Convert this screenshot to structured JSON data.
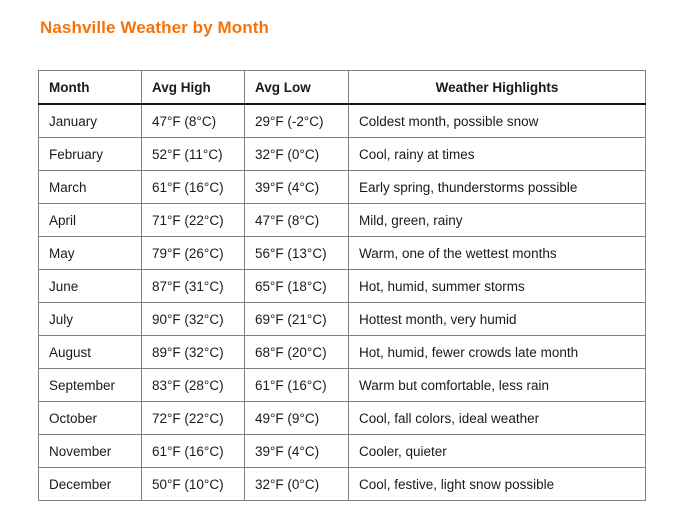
{
  "page": {
    "title": "Nashville Weather by Month"
  },
  "colors": {
    "title_accent": "#f4730b",
    "grid_line": "#808080",
    "outer_border": "#4d4d4d",
    "header_rule": "#141414",
    "text": "#1a1a1a",
    "background": "#ffffff"
  },
  "table": {
    "columns": [
      "Month",
      "Avg High",
      "Avg Low",
      "Weather Highlights"
    ],
    "rows": [
      {
        "month": "January",
        "avg_high": "47°F (8°C)",
        "avg_low": "29°F (-2°C)",
        "highlights": "Coldest month, possible snow"
      },
      {
        "month": "February",
        "avg_high": "52°F (11°C)",
        "avg_low": "32°F (0°C)",
        "highlights": "Cool, rainy at times"
      },
      {
        "month": "March",
        "avg_high": "61°F (16°C)",
        "avg_low": "39°F (4°C)",
        "highlights": "Early spring, thunderstorms possible"
      },
      {
        "month": "April",
        "avg_high": "71°F (22°C)",
        "avg_low": "47°F (8°C)",
        "highlights": "Mild, green, rainy"
      },
      {
        "month": "May",
        "avg_high": "79°F (26°C)",
        "avg_low": "56°F (13°C)",
        "highlights": "Warm, one of the wettest months"
      },
      {
        "month": "June",
        "avg_high": "87°F (31°C)",
        "avg_low": "65°F (18°C)",
        "highlights": "Hot, humid, summer storms"
      },
      {
        "month": "July",
        "avg_high": "90°F (32°C)",
        "avg_low": "69°F (21°C)",
        "highlights": "Hottest month, very humid"
      },
      {
        "month": "August",
        "avg_high": "89°F (32°C)",
        "avg_low": "68°F (20°C)",
        "highlights": "Hot, humid, fewer crowds late month"
      },
      {
        "month": "September",
        "avg_high": "83°F (28°C)",
        "avg_low": "61°F (16°C)",
        "highlights": "Warm but comfortable, less rain"
      },
      {
        "month": "October",
        "avg_high": "72°F (22°C)",
        "avg_low": "49°F (9°C)",
        "highlights": "Cool, fall colors, ideal weather"
      },
      {
        "month": "November",
        "avg_high": "61°F (16°C)",
        "avg_low": "39°F (4°C)",
        "highlights": "Cooler, quieter"
      },
      {
        "month": "December",
        "avg_high": "50°F (10°C)",
        "avg_low": "32°F (0°C)",
        "highlights": "Cool, festive, light snow possible"
      }
    ]
  }
}
